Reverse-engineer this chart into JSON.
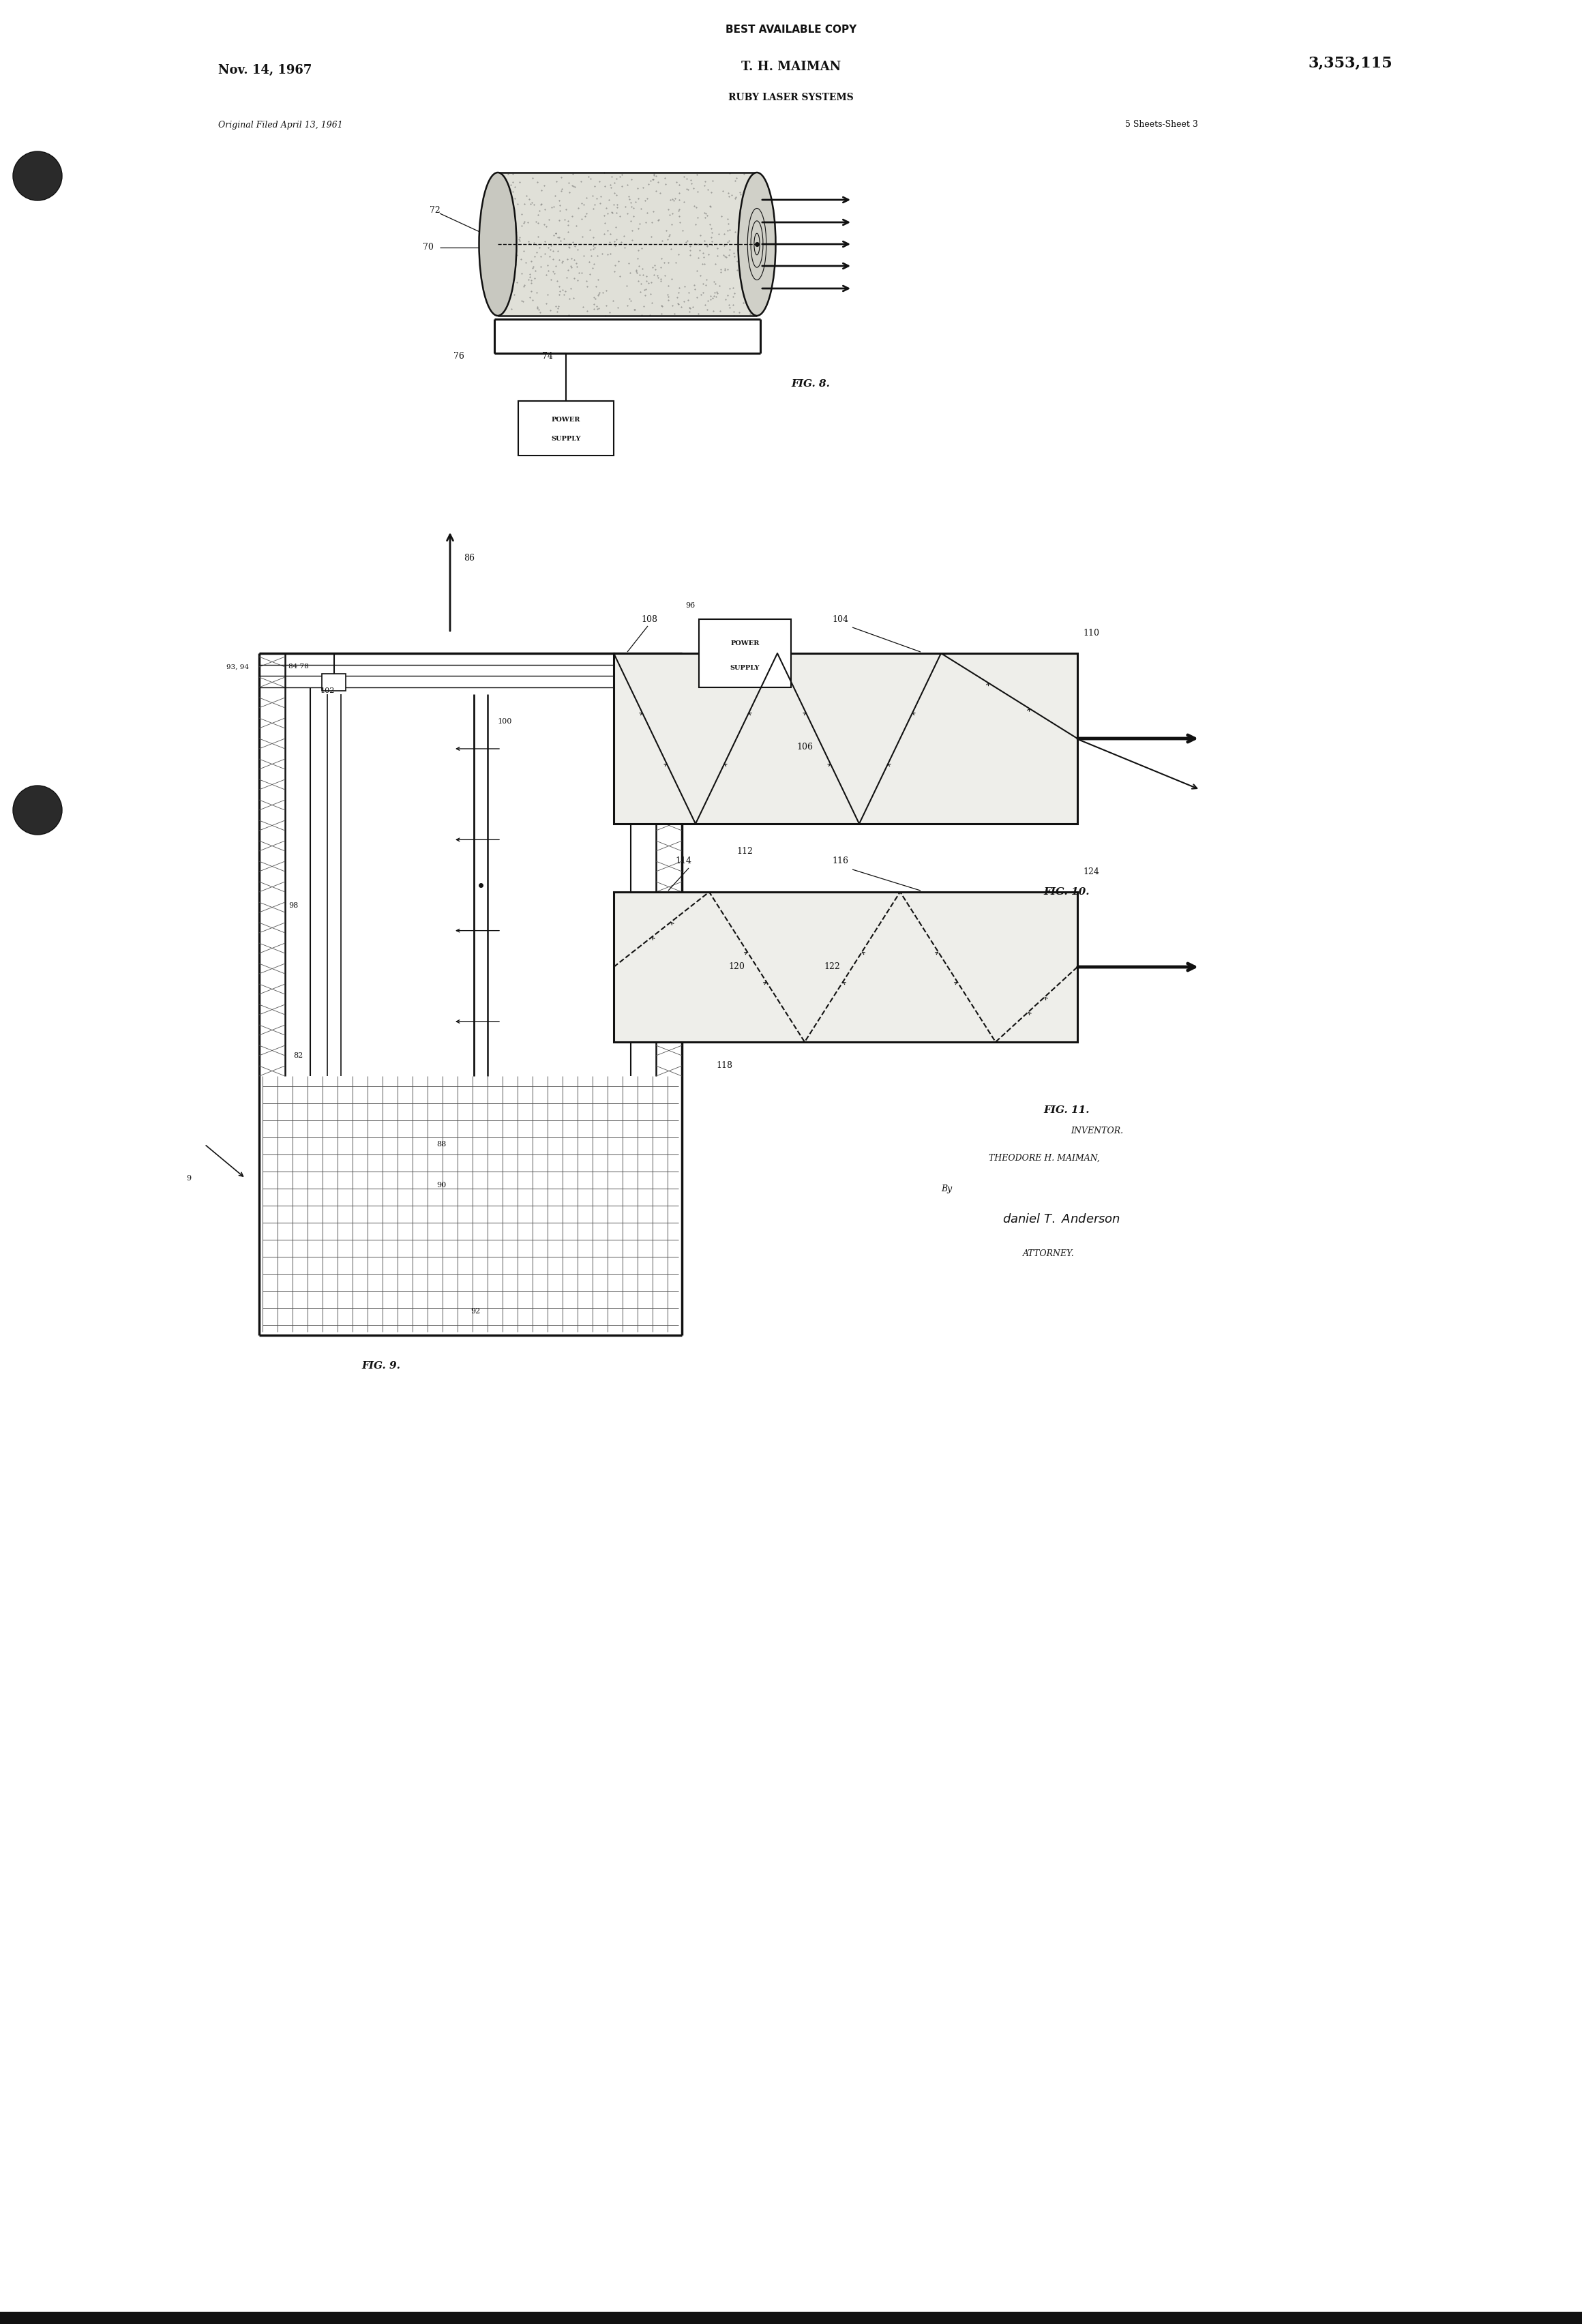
{
  "bg_color": "#ffffff",
  "page_width": 23.2,
  "page_height": 34.08,
  "header_text": "BEST AVAILABLE COPY",
  "date_text": "Nov. 14, 1967",
  "inventor_text": "T. H. MAIMAN",
  "patent_num": "3,353,115",
  "title_text": "RUBY LASER SYSTEMS",
  "filed_text": "Original Filed April 13, 1961",
  "sheet_text": "5 Sheets-Sheet 3",
  "fig8_label": "FIG. 8.",
  "fig9_label": "FIG. 9.",
  "fig10_label": "FIG. 10.",
  "fig11_label": "FIG. 11.",
  "text_color": "#111111",
  "line_color": "#111111",
  "hatch_color": "#333333"
}
